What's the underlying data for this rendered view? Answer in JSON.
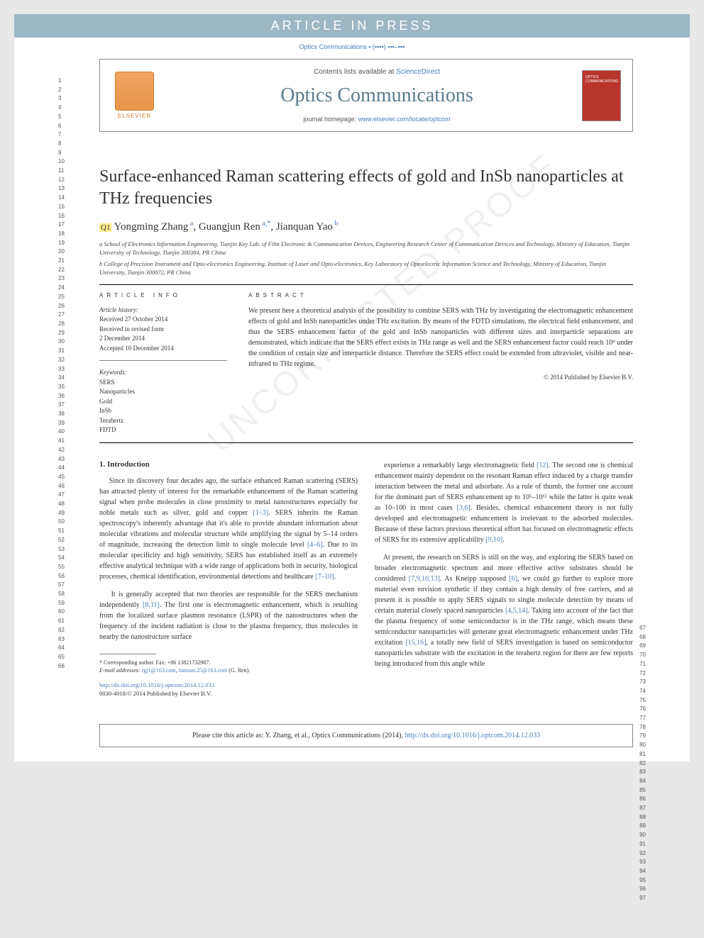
{
  "banner": "ARTICLE IN PRESS",
  "citation_top": "Optics Communications ▪ (▪▪▪▪) ▪▪▪–▪▪▪",
  "header": {
    "contents_prefix": "Contents lists available at ",
    "contents_link": "ScienceDirect",
    "journal_title": "Optics Communications",
    "homepage_prefix": "journal homepage: ",
    "homepage_url": "www.elsevier.com/locate/optcom",
    "publisher": "ELSEVIER"
  },
  "article": {
    "title": "Surface-enhanced Raman scattering effects of gold and InSb nanoparticles at THz frequencies",
    "authors_html": "Yongming Zhang <sup>a</sup>, Guangjun Ren <sup>a,*</sup>, Jianquan Yao <sup>b</sup>",
    "q_label": "Q1",
    "affiliations": [
      "a School of Electronics Information Engineering, Tianjin Key Lab. of Film Electronic & Communication Devices, Engineering Research Center of Communication Devices and Technology, Ministry of Education, Tianjin University of Technology, Tianjin 300384, PR China",
      "b College of Precision Instrument and Opto-electronics Engineering, Institute of Laser and Opto-electronics, Key Laboratory of Optoelectric Information Science and Technology, Ministry of Education, Tianjin University, Tianjin 300072, PR China"
    ]
  },
  "article_info": {
    "heading": "ARTICLE INFO",
    "history_label": "Article history:",
    "history": [
      "Received 27 October 2014",
      "Received in revised form",
      "2 December 2014",
      "Accepted 10 December 2014"
    ],
    "keywords_label": "Keywords:",
    "keywords": [
      "SERS",
      "Nanoparticles",
      "Gold",
      "InSb",
      "Terahertz",
      "FDTD"
    ]
  },
  "abstract": {
    "heading": "ABSTRACT",
    "text": "We present here a theoretical analysis of the possibility to combine SERS with THz by investigating the electromagnetic enhancement effects of gold and InSb nanoparticles under THz excitation. By means of the FDTD simulations, the electrical field enhancement, and thus the SERS enhancement factor of the gold and InSb nanoparticles with different sizes and interparticle separations are demonstrated, which indicate that the SERS effect exists in THz range as well and the SERS enhancement factor could reach 10⁹ under the condition of certain size and interparticle distance. Therefore the SERS effect could be extended from ultraviolet, visible and near-infrared to THz regime.",
    "copyright": "© 2014 Published by Elsevier B.V."
  },
  "section1": {
    "heading": "1. Introduction",
    "p1": "Since its discovery four decades ago, the surface enhanced Raman scattering (SERS) has attracted plenty of interest for the remarkable enhancement of the Raman scattering signal when probe molecules in close proximity to metal nanostructures especially for noble metals such as silver, gold and copper [1–3]. SERS inherits the Raman spectroscopy's inherently advantage that it's able to provide abundant information about molecular vibrations and molecular structure while amplifying the signal by 5–14 orders of magnitude, increasing the detection limit to single molecule level [4–6]. Due to its molecular specificity and high sensitivity, SERS has established itself as an extremely effective analytical technique with a wide range of applications both in security, biological processes, chemical identification, environmental detections and healthcare [7–10].",
    "p2": "It is generally accepted that two theories are responsible for the SERS mechanism independently [8,11]. The first one is electromagnetic enhancement, which is resulting from the localized surface plasmon resonance (LSPR) of the nanostructures when the frequency of the incident radiation is close to the plasma frequency, thus molecules in nearby the nanostructure surface",
    "p3": "experience a remarkably large electromagnetic field [12]. The second one is chemical enhancement mainly dependent on the resonant Raman effect induced by a charge transfer interaction between the metal and adsorbate. As a rule of thumb, the former one account for the dominant part of SERS enhancement up to 10⁵–10¹² while the latter is quite weak as 10–100 in most cases [3,6]. Besides, chemical enhancement theory is not fully developed and electromagnetic enhancement is irrelevant to the adsorbed molecules. Because of these factors previous theoretical effort has focused on electromagnetic effects of SERS for its extensive applicability [9,10].",
    "p4": "At present, the research on SERS is still on the way, and exploring the SERS based on broader electromagnetic spectrum and more effective active substrates should be considered [7,9,10,13]. As Kneipp supposed [6], we could go further to explore more material even envision synthetic if they contain a high density of free carriers, and at present it is possible to apply SERS signals to single molecule detection by means of certain material closely spaced nanoparticles [4,5,14]. Taking into account of the fact that the plasma frequency of some semiconductor is in the THz range, which means these semiconductor nanoparticles will generate great electromagnetic enhancement under THz excitation [15,16], a totally new field of SERS investigation is based on semiconductor nanoparticles substrate with the excitation in the terahertz region for there are few reports being introduced from this angle while"
  },
  "footnote": {
    "corresponding": "* Corresponding author. Fax: +86 13821732987.",
    "email_label": "E-mail addresses: ",
    "emails": [
      "rgj1@163.com",
      "tianzun.25@163.com"
    ],
    "email_suffix": " (G. Ren)."
  },
  "doi": {
    "url": "http://dx.doi.org/10.1016/j.optcom.2014.12.033",
    "issn_line": "0030-4018/© 2014 Published by Elsevier B.V."
  },
  "cite_footer": {
    "prefix": "Please cite this article as: Y. Zhang, et al., Optics Communications (2014), ",
    "url": "http://dx.doi.org/10.1016/j.optcom.2014.12.033"
  },
  "line_numbers": {
    "left_start": 1,
    "left_end": 66,
    "right_start": 67,
    "right_end": 97
  },
  "watermark": "UNCORRECTED PROOF",
  "colors": {
    "banner_bg": "#9cb8c4",
    "link": "#4a7db8",
    "journal_title": "#5a7a8a",
    "cover_bg": "#b8352e",
    "elsevier": "#d67b2e"
  }
}
